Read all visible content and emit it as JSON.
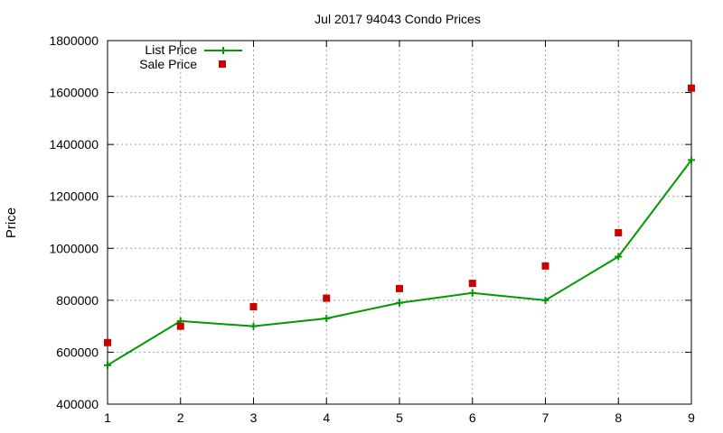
{
  "chart_data": {
    "type": "line",
    "title": "Jul 2017 94043 Condo Prices",
    "xlabel": "",
    "ylabel": "Price",
    "xlim": [
      1,
      9
    ],
    "ylim": [
      400000,
      1800000
    ],
    "x_ticks": [
      "1",
      "2",
      "3",
      "4",
      "5",
      "6",
      "7",
      "8",
      "9"
    ],
    "y_ticks": [
      "400000",
      "600000",
      "800000",
      "1000000",
      "1200000",
      "1400000",
      "1600000",
      "1800000"
    ],
    "grid": true,
    "legend_position": "top-left",
    "x": [
      1,
      2,
      3,
      4,
      5,
      6,
      7,
      8,
      9
    ],
    "series": [
      {
        "name": "List Price",
        "style": "line-with-plus-markers",
        "color": "#009900",
        "values": [
          550000,
          720000,
          700000,
          730000,
          790000,
          828000,
          800000,
          968000,
          1340000
        ]
      },
      {
        "name": "Sale Price",
        "style": "square-markers",
        "color": "#cc0000",
        "values": [
          637000,
          700000,
          775000,
          808000,
          845000,
          865000,
          932000,
          1060000,
          1617000
        ]
      }
    ]
  }
}
